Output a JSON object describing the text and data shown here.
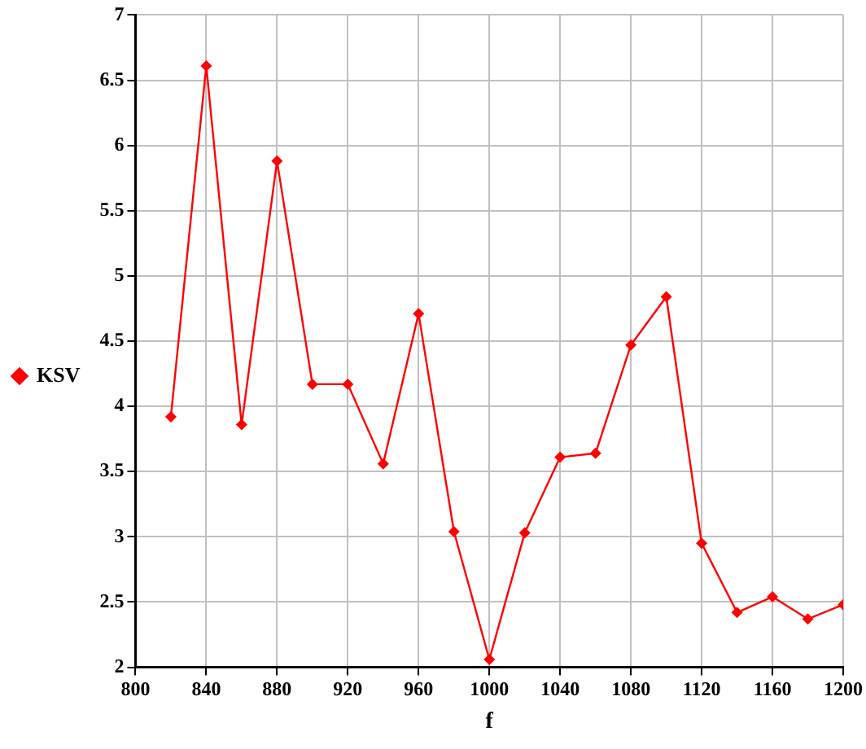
{
  "chart_data": {
    "type": "line",
    "xlabel": "f",
    "x": [
      820,
      840,
      860,
      880,
      900,
      920,
      940,
      960,
      980,
      1000,
      1020,
      1040,
      1060,
      1080,
      1100,
      1120,
      1140,
      1160,
      1180,
      1200
    ],
    "series": [
      {
        "name": "KSV",
        "color": "#ff0000",
        "values": [
          3.92,
          6.61,
          3.86,
          5.88,
          4.17,
          4.17,
          3.56,
          4.71,
          3.04,
          2.06,
          3.03,
          3.61,
          3.64,
          4.47,
          4.84,
          2.95,
          2.42,
          2.54,
          2.37,
          2.48
        ]
      }
    ],
    "xlim": [
      800,
      1200
    ],
    "xticks": [
      800,
      840,
      880,
      920,
      960,
      1000,
      1040,
      1080,
      1120,
      1160,
      1200
    ],
    "ylim": [
      2,
      7
    ],
    "yticks": [
      2,
      2.5,
      3,
      3.5,
      4,
      4.5,
      5,
      5.5,
      6,
      6.5,
      7
    ],
    "grid": true,
    "legend": "left",
    "marker": "diamond",
    "line_style": "solid"
  }
}
